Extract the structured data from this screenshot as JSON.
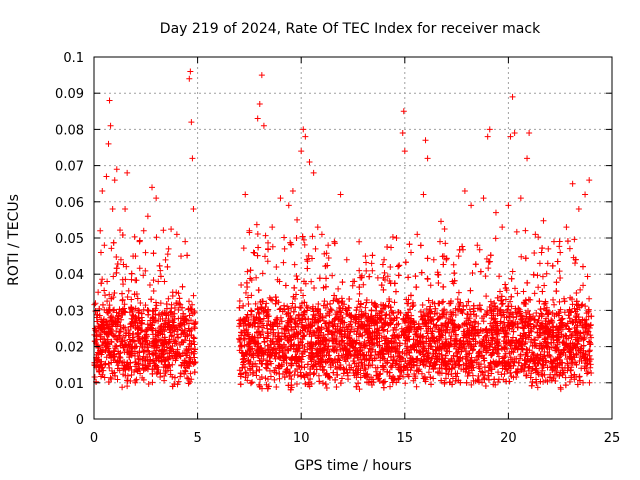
{
  "chart_data": {
    "type": "scatter",
    "title": "Day 219 of 2024, Rate Of TEC Index for receiver mack",
    "xlabel": "GPS time / hours",
    "ylabel": "ROTI / TECUs",
    "xlim": [
      0,
      25
    ],
    "ylim": [
      0,
      0.1
    ],
    "xticks": [
      "0",
      "5",
      "10",
      "15",
      "20",
      "25"
    ],
    "yticks": [
      "0",
      "0.01",
      "0.02",
      "0.03",
      "0.04",
      "0.05",
      "0.06",
      "0.07",
      "0.08",
      "0.09",
      "0.1"
    ],
    "grid": true,
    "marker": "+",
    "color": "#ff0000",
    "data_gap_hours": [
      4.9,
      7.0
    ],
    "series": [
      {
        "points": [
          [
            0.1,
            0.021
          ],
          [
            0.2,
            0.035
          ],
          [
            0.3,
            0.052
          ],
          [
            0.4,
            0.063
          ],
          [
            0.5,
            0.048
          ],
          [
            0.6,
            0.067
          ],
          [
            0.7,
            0.076
          ],
          [
            0.75,
            0.088
          ],
          [
            0.8,
            0.081
          ],
          [
            0.9,
            0.058
          ],
          [
            1.0,
            0.066
          ],
          [
            1.1,
            0.069
          ],
          [
            1.3,
            0.044
          ],
          [
            1.5,
            0.058
          ],
          [
            1.6,
            0.068
          ],
          [
            1.8,
            0.033
          ],
          [
            2.0,
            0.045
          ],
          [
            2.2,
            0.049
          ],
          [
            2.4,
            0.052
          ],
          [
            2.6,
            0.056
          ],
          [
            2.8,
            0.064
          ],
          [
            3.0,
            0.061
          ],
          [
            3.2,
            0.041
          ],
          [
            3.4,
            0.038
          ],
          [
            3.6,
            0.047
          ],
          [
            3.8,
            0.035
          ],
          [
            4.0,
            0.051
          ],
          [
            4.2,
            0.045
          ],
          [
            4.4,
            0.049
          ],
          [
            4.6,
            0.094
          ],
          [
            4.65,
            0.096
          ],
          [
            4.7,
            0.082
          ],
          [
            4.75,
            0.072
          ],
          [
            4.8,
            0.058
          ],
          [
            7.1,
            0.037
          ],
          [
            7.3,
            0.062
          ],
          [
            7.5,
            0.052
          ],
          [
            7.7,
            0.046
          ],
          [
            7.9,
            0.083
          ],
          [
            8.0,
            0.087
          ],
          [
            8.1,
            0.095
          ],
          [
            8.2,
            0.081
          ],
          [
            8.4,
            0.047
          ],
          [
            8.6,
            0.053
          ],
          [
            8.8,
            0.042
          ],
          [
            9.0,
            0.061
          ],
          [
            9.2,
            0.047
          ],
          [
            9.4,
            0.059
          ],
          [
            9.6,
            0.063
          ],
          [
            9.8,
            0.055
          ],
          [
            10.0,
            0.074
          ],
          [
            10.1,
            0.08
          ],
          [
            10.2,
            0.078
          ],
          [
            10.4,
            0.071
          ],
          [
            10.6,
            0.068
          ],
          [
            10.8,
            0.053
          ],
          [
            11.0,
            0.051
          ],
          [
            11.3,
            0.048
          ],
          [
            11.6,
            0.049
          ],
          [
            11.9,
            0.062
          ],
          [
            12.2,
            0.044
          ],
          [
            12.5,
            0.038
          ],
          [
            12.8,
            0.041
          ],
          [
            13.1,
            0.045
          ],
          [
            13.4,
            0.043
          ],
          [
            13.7,
            0.039
          ],
          [
            14.0,
            0.044
          ],
          [
            14.3,
            0.042
          ],
          [
            14.6,
            0.05
          ],
          [
            14.9,
            0.079
          ],
          [
            14.95,
            0.085
          ],
          [
            15.0,
            0.074
          ],
          [
            15.3,
            0.046
          ],
          [
            15.6,
            0.051
          ],
          [
            15.9,
            0.062
          ],
          [
            16.0,
            0.077
          ],
          [
            16.1,
            0.072
          ],
          [
            16.4,
            0.044
          ],
          [
            16.7,
            0.049
          ],
          [
            17.0,
            0.044
          ],
          [
            17.3,
            0.038
          ],
          [
            17.6,
            0.045
          ],
          [
            17.9,
            0.063
          ],
          [
            18.2,
            0.059
          ],
          [
            18.5,
            0.048
          ],
          [
            18.8,
            0.061
          ],
          [
            19.0,
            0.078
          ],
          [
            19.1,
            0.08
          ],
          [
            19.4,
            0.057
          ],
          [
            19.7,
            0.053
          ],
          [
            20.0,
            0.059
          ],
          [
            20.1,
            0.078
          ],
          [
            20.2,
            0.089
          ],
          [
            20.3,
            0.079
          ],
          [
            20.6,
            0.061
          ],
          [
            20.9,
            0.072
          ],
          [
            21.0,
            0.079
          ],
          [
            21.3,
            0.051
          ],
          [
            21.6,
            0.046
          ],
          [
            21.9,
            0.043
          ],
          [
            22.2,
            0.049
          ],
          [
            22.5,
            0.046
          ],
          [
            22.8,
            0.053
          ],
          [
            23.1,
            0.065
          ],
          [
            23.4,
            0.058
          ],
          [
            23.7,
            0.062
          ],
          [
            23.9,
            0.066
          ]
        ]
      }
    ]
  }
}
